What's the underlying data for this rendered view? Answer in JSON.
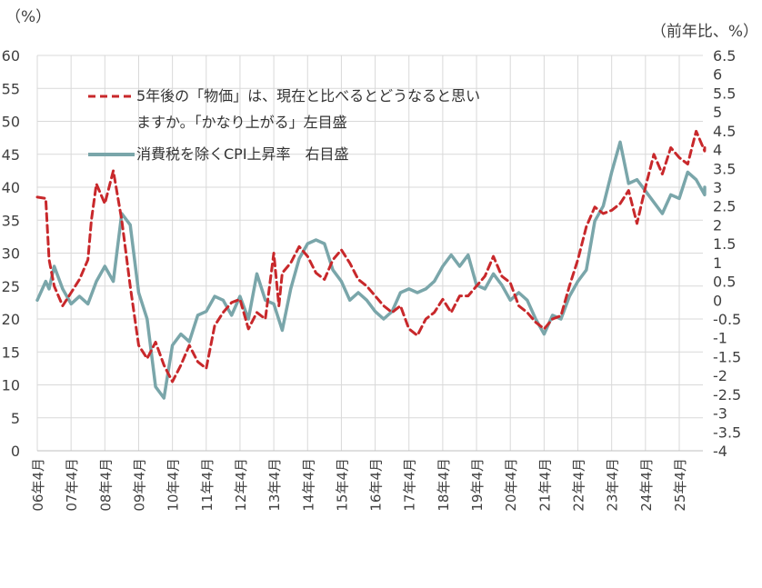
{
  "chart_data": {
    "type": "line",
    "left_unit": "（%）",
    "right_unit": "（前年比、%）",
    "x_categories": [
      "06年4月",
      "07年4月",
      "08年4月",
      "09年4月",
      "10年4月",
      "11年4月",
      "12年4月",
      "13年4月",
      "14年4月",
      "15年4月",
      "16年4月",
      "17年4月",
      "18年4月",
      "19年4月",
      "20年4月",
      "21年4月",
      "22年4月",
      "23年4月",
      "24年4月",
      "25年4月"
    ],
    "x_range": [
      2006.25,
      2025.95
    ],
    "y_left": {
      "min": 0,
      "max": 60,
      "step": 5,
      "ticks": [
        "0",
        "5",
        "10",
        "15",
        "20",
        "25",
        "30",
        "35",
        "40",
        "45",
        "50",
        "55",
        "60"
      ]
    },
    "y_right": {
      "min": -4,
      "max": 6.5,
      "step": 0.5,
      "ticks": [
        "-4",
        "-3.5",
        "-3",
        "-2.5",
        "-2",
        "-1.5",
        "-1",
        "-0.5",
        "0",
        "0.5",
        "1",
        "1.5",
        "2",
        "2.5",
        "3",
        "3.5",
        "4",
        "4.5",
        "5",
        "5.5",
        "6",
        "6.5"
      ]
    },
    "legend_position": "top-left",
    "series": [
      {
        "name": "5年後の「物価」は、現在と比べるとどうなると思いますか。「かなり上がる」左目盛",
        "name_line1": "5年後の「物価」は、現在と比べるとどうなると思い",
        "name_line2": "ますか。「かなり上がる」左目盛",
        "axis": "left",
        "color": "#c8282b",
        "style": "dashed",
        "points": [
          [
            2006.25,
            38.5
          ],
          [
            2006.5,
            38.3
          ],
          [
            2006.6,
            29
          ],
          [
            2006.75,
            25
          ],
          [
            2007.0,
            22
          ],
          [
            2007.25,
            24
          ],
          [
            2007.5,
            26
          ],
          [
            2007.75,
            29
          ],
          [
            2007.85,
            35
          ],
          [
            2008.0,
            40.5
          ],
          [
            2008.25,
            37.5
          ],
          [
            2008.5,
            42.5
          ],
          [
            2008.75,
            35
          ],
          [
            2009.0,
            25
          ],
          [
            2009.25,
            16
          ],
          [
            2009.5,
            14
          ],
          [
            2009.75,
            16.5
          ],
          [
            2010.0,
            13
          ],
          [
            2010.25,
            10.5
          ],
          [
            2010.5,
            13
          ],
          [
            2010.75,
            16
          ],
          [
            2011.0,
            13.5
          ],
          [
            2011.25,
            12.5
          ],
          [
            2011.5,
            19
          ],
          [
            2011.75,
            21
          ],
          [
            2012.0,
            22.5
          ],
          [
            2012.25,
            23
          ],
          [
            2012.5,
            18.5
          ],
          [
            2012.75,
            21
          ],
          [
            2013.0,
            20
          ],
          [
            2013.25,
            30
          ],
          [
            2013.4,
            22
          ],
          [
            2013.5,
            27
          ],
          [
            2013.75,
            28.5
          ],
          [
            2014.0,
            31
          ],
          [
            2014.25,
            29.5
          ],
          [
            2014.5,
            27
          ],
          [
            2014.75,
            26
          ],
          [
            2015.0,
            29
          ],
          [
            2015.25,
            30.5
          ],
          [
            2015.5,
            28.5
          ],
          [
            2015.75,
            26
          ],
          [
            2016.0,
            25
          ],
          [
            2016.25,
            23.5
          ],
          [
            2016.5,
            22
          ],
          [
            2016.75,
            21
          ],
          [
            2017.0,
            22
          ],
          [
            2017.25,
            18.5
          ],
          [
            2017.5,
            17.5
          ],
          [
            2017.75,
            20
          ],
          [
            2018.0,
            21
          ],
          [
            2018.25,
            23
          ],
          [
            2018.5,
            21
          ],
          [
            2018.75,
            23.5
          ],
          [
            2019.0,
            23.5
          ],
          [
            2019.25,
            25
          ],
          [
            2019.5,
            26.5
          ],
          [
            2019.75,
            29.5
          ],
          [
            2020.0,
            26.5
          ],
          [
            2020.25,
            25.5
          ],
          [
            2020.5,
            22
          ],
          [
            2020.75,
            21
          ],
          [
            2021.0,
            19.5
          ],
          [
            2021.25,
            18.5
          ],
          [
            2021.5,
            20
          ],
          [
            2021.75,
            20.5
          ],
          [
            2022.0,
            25
          ],
          [
            2022.25,
            29
          ],
          [
            2022.5,
            34
          ],
          [
            2022.75,
            37
          ],
          [
            2023.0,
            36
          ],
          [
            2023.25,
            36.5
          ],
          [
            2023.5,
            37.5
          ],
          [
            2023.75,
            39.5
          ],
          [
            2024.0,
            34.5
          ],
          [
            2024.25,
            40
          ],
          [
            2024.5,
            45
          ],
          [
            2024.75,
            42
          ],
          [
            2025.0,
            46
          ],
          [
            2025.25,
            44.5
          ],
          [
            2025.5,
            43.5
          ],
          [
            2025.75,
            48.5
          ],
          [
            2026.0,
            45.5
          ],
          [
            2026.25,
            46
          ]
        ]
      },
      {
        "name": "消費税を除くCPI上昇率 右目盛",
        "name_display": "消費税を除くCPI上昇率　右目盛",
        "axis": "right",
        "color": "#7aa6aa",
        "style": "solid",
        "points": [
          [
            2006.25,
            0
          ],
          [
            2006.5,
            0.5
          ],
          [
            2006.6,
            0.3
          ],
          [
            2006.75,
            0.9
          ],
          [
            2007.0,
            0.3
          ],
          [
            2007.25,
            -0.1
          ],
          [
            2007.5,
            0.1
          ],
          [
            2007.75,
            -0.1
          ],
          [
            2008.0,
            0.5
          ],
          [
            2008.25,
            0.9
          ],
          [
            2008.5,
            0.5
          ],
          [
            2008.75,
            2.3
          ],
          [
            2009.0,
            2.0
          ],
          [
            2009.25,
            0.2
          ],
          [
            2009.5,
            -0.5
          ],
          [
            2009.75,
            -2.3
          ],
          [
            2010.0,
            -2.6
          ],
          [
            2010.25,
            -1.2
          ],
          [
            2010.5,
            -0.9
          ],
          [
            2010.75,
            -1.1
          ],
          [
            2011.0,
            -0.4
          ],
          [
            2011.25,
            -0.3
          ],
          [
            2011.5,
            0.1
          ],
          [
            2011.75,
            0.0
          ],
          [
            2012.0,
            -0.4
          ],
          [
            2012.25,
            0.1
          ],
          [
            2012.5,
            -0.5
          ],
          [
            2012.75,
            0.7
          ],
          [
            2013.0,
            0.0
          ],
          [
            2013.25,
            -0.1
          ],
          [
            2013.5,
            -0.8
          ],
          [
            2013.75,
            0.3
          ],
          [
            2014.0,
            1.1
          ],
          [
            2014.25,
            1.5
          ],
          [
            2014.5,
            1.6
          ],
          [
            2014.75,
            1.5
          ],
          [
            2015.0,
            0.8
          ],
          [
            2015.25,
            0.5
          ],
          [
            2015.5,
            0.0
          ],
          [
            2015.75,
            0.2
          ],
          [
            2016.0,
            0.0
          ],
          [
            2016.25,
            -0.3
          ],
          [
            2016.5,
            -0.5
          ],
          [
            2016.75,
            -0.3
          ],
          [
            2017.0,
            0.2
          ],
          [
            2017.25,
            0.3
          ],
          [
            2017.5,
            0.2
          ],
          [
            2017.75,
            0.3
          ],
          [
            2018.0,
            0.5
          ],
          [
            2018.25,
            0.9
          ],
          [
            2018.5,
            1.2
          ],
          [
            2018.75,
            0.9
          ],
          [
            2019.0,
            1.2
          ],
          [
            2019.25,
            0.4
          ],
          [
            2019.5,
            0.3
          ],
          [
            2019.75,
            0.7
          ],
          [
            2020.0,
            0.4
          ],
          [
            2020.25,
            0.0
          ],
          [
            2020.5,
            0.2
          ],
          [
            2020.75,
            0.0
          ],
          [
            2021.0,
            -0.5
          ],
          [
            2021.25,
            -0.9
          ],
          [
            2021.5,
            -0.4
          ],
          [
            2021.75,
            -0.5
          ],
          [
            2022.0,
            0.1
          ],
          [
            2022.25,
            0.5
          ],
          [
            2022.5,
            0.8
          ],
          [
            2022.75,
            2.1
          ],
          [
            2023.0,
            2.5
          ],
          [
            2023.25,
            3.4
          ],
          [
            2023.5,
            4.2
          ],
          [
            2023.75,
            3.1
          ],
          [
            2024.0,
            3.2
          ],
          [
            2024.25,
            2.9
          ],
          [
            2024.5,
            2.6
          ],
          [
            2024.75,
            2.3
          ],
          [
            2025.0,
            2.8
          ],
          [
            2025.25,
            2.7
          ],
          [
            2025.5,
            3.4
          ],
          [
            2025.75,
            3.2
          ],
          [
            2026.0,
            2.8
          ],
          [
            2026.25,
            3.0
          ]
        ]
      }
    ]
  }
}
